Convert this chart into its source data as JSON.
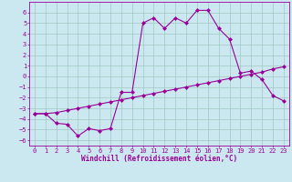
{
  "title": "",
  "xlabel": "Windchill (Refroidissement éolien,°C)",
  "bg_color": "#cbe8f0",
  "grid_color": "#a0c8c0",
  "line_color": "#990099",
  "xlim": [
    -0.5,
    23.5
  ],
  "ylim": [
    -6.5,
    7.0
  ],
  "xticks": [
    0,
    1,
    2,
    3,
    4,
    5,
    6,
    7,
    8,
    9,
    10,
    11,
    12,
    13,
    14,
    15,
    16,
    17,
    18,
    19,
    20,
    21,
    22,
    23
  ],
  "yticks": [
    -6,
    -5,
    -4,
    -3,
    -2,
    -1,
    0,
    1,
    2,
    3,
    4,
    5,
    6
  ],
  "line1_x": [
    0,
    1,
    2,
    3,
    4,
    5,
    6,
    7,
    8,
    9,
    10,
    11,
    12,
    13,
    14,
    15,
    16,
    17,
    18,
    19,
    20,
    21,
    22,
    23
  ],
  "line1_y": [
    -3.5,
    -3.5,
    -4.4,
    -4.5,
    -5.6,
    -4.9,
    -5.1,
    -4.9,
    -1.5,
    -1.5,
    5.0,
    5.5,
    4.5,
    5.5,
    5.0,
    6.2,
    6.2,
    4.5,
    3.5,
    0.3,
    0.5,
    -0.3,
    -1.8,
    -2.3
  ],
  "line2_x": [
    0,
    1,
    2,
    3,
    4,
    5,
    6,
    7,
    8,
    9,
    10,
    11,
    12,
    13,
    14,
    15,
    16,
    17,
    18,
    19,
    20,
    21,
    22,
    23
  ],
  "line2_y": [
    -3.5,
    -3.5,
    -3.4,
    -3.2,
    -3.0,
    -2.8,
    -2.6,
    -2.4,
    -2.2,
    -2.0,
    -1.8,
    -1.6,
    -1.4,
    -1.2,
    -1.0,
    -0.8,
    -0.6,
    -0.4,
    -0.2,
    0.0,
    0.2,
    0.4,
    0.7,
    0.9
  ],
  "markersize": 2.5,
  "linewidth": 0.8,
  "tick_color": "#990099",
  "tick_fontsize": 5.0,
  "xlabel_fontsize": 5.5
}
